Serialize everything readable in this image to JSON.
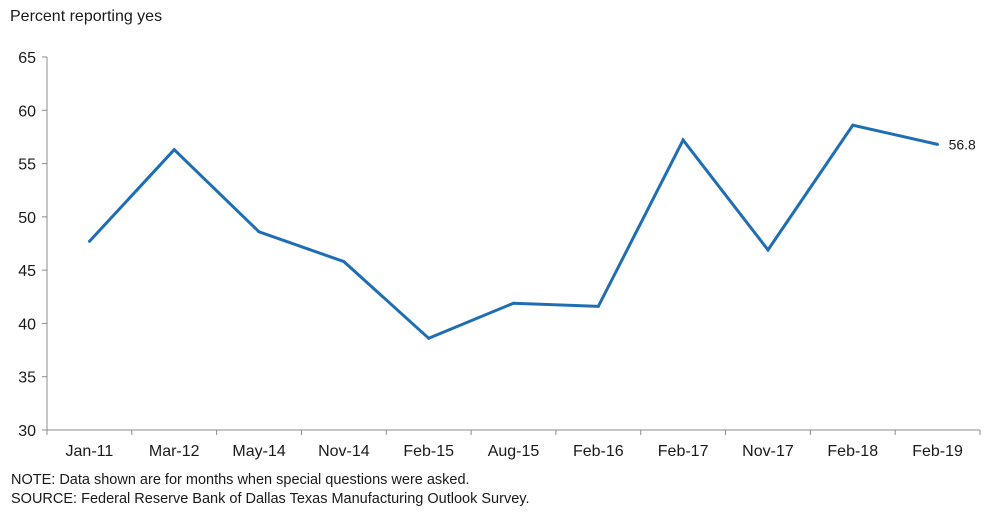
{
  "chart_data": {
    "type": "line",
    "ylabel": "Percent reporting yes",
    "xlabel": "",
    "ylim": [
      30,
      65
    ],
    "yticks": [
      30,
      35,
      40,
      45,
      50,
      55,
      60,
      65
    ],
    "grid": false,
    "categories": [
      "Jan-11",
      "Mar-12",
      "May-14",
      "Nov-14",
      "Feb-15",
      "Aug-15",
      "Feb-16",
      "Feb-17",
      "Nov-17",
      "Feb-18",
      "Feb-19"
    ],
    "series": [
      {
        "values": [
          47.7,
          56.3,
          48.6,
          45.8,
          38.6,
          41.9,
          41.6,
          57.2,
          46.9,
          58.6,
          56.8
        ],
        "color": "#1f6eb3"
      }
    ],
    "annotations": [
      {
        "category": "Feb-19",
        "text": "56.8"
      }
    ]
  },
  "footer": {
    "note": "NOTE: Data shown are for months when special questions were asked.",
    "source": "SOURCE: Federal Reserve Bank of Dallas Texas Manufacturing Outlook Survey."
  }
}
